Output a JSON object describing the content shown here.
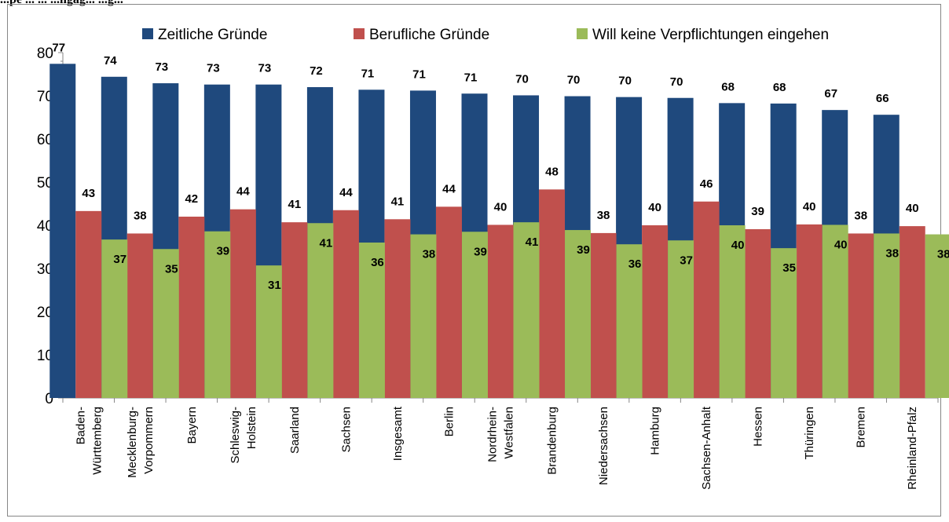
{
  "header": {
    "title": "...pe ... ... ...ngag... ...g..."
  },
  "chart_data": {
    "type": "bar",
    "title": "",
    "xlabel": "",
    "ylabel": "",
    "ylim": [
      0,
      80
    ],
    "yticks": [
      0,
      10,
      20,
      30,
      40,
      50,
      60,
      70,
      80
    ],
    "grid": false,
    "legend_position": "top",
    "categories": [
      "Baden-\nWürttemberg",
      "Mecklenburg-\nVorpommern",
      "Bayern",
      "Schleswig-\nHolstein",
      "Saarland",
      "Sachsen",
      "Insgesamt",
      "Berlin",
      "Nordrhein-\nWestfalen",
      "Brandenburg",
      "Niedersachsen",
      "Hamburg",
      "Sachsen-Anhalt",
      "Hessen",
      "Thüringen",
      "Bremen",
      "Rheinland-Pfalz"
    ],
    "series": [
      {
        "name": "Zeitliche Gründe",
        "color": "#1f497d",
        "values": [
          77.4,
          74.4,
          72.9,
          72.6,
          72.6,
          72.0,
          71.4,
          71.2,
          70.5,
          70.1,
          69.9,
          69.7,
          69.5,
          68.3,
          68.2,
          66.7,
          65.6
        ],
        "labels": [
          "77",
          "74",
          "73",
          "73",
          "73",
          "72",
          "71",
          "71",
          "71",
          "70",
          "70",
          "70",
          "70",
          "68",
          "68",
          "67",
          "66"
        ]
      },
      {
        "name": "Berufliche Gründe",
        "color": "#c0504d",
        "values": [
          43.3,
          38.1,
          42.0,
          43.7,
          40.7,
          43.5,
          41.4,
          44.3,
          40.1,
          48.3,
          38.2,
          40.0,
          45.5,
          39.1,
          40.2,
          38.1,
          39.8
        ],
        "labels": [
          "43",
          "38",
          "42",
          "44",
          "41",
          "44",
          "41",
          "44",
          "40",
          "48",
          "38",
          "40",
          "46",
          "39",
          "40",
          "38",
          "40"
        ]
      },
      {
        "name": "Will keine Verpflichtungen eingehen",
        "color": "#9bbb59",
        "values": [
          36.7,
          34.5,
          38.6,
          30.7,
          40.5,
          36.0,
          37.9,
          38.5,
          40.7,
          38.9,
          35.6,
          36.5,
          40.0,
          34.7,
          40.1,
          38.1,
          37.9
        ],
        "labels": [
          "37",
          "35",
          "39",
          "31",
          "41",
          "36",
          "38",
          "39",
          "41",
          "39",
          "36",
          "37",
          "40",
          "35",
          "40",
          "38",
          "38"
        ]
      }
    ]
  }
}
